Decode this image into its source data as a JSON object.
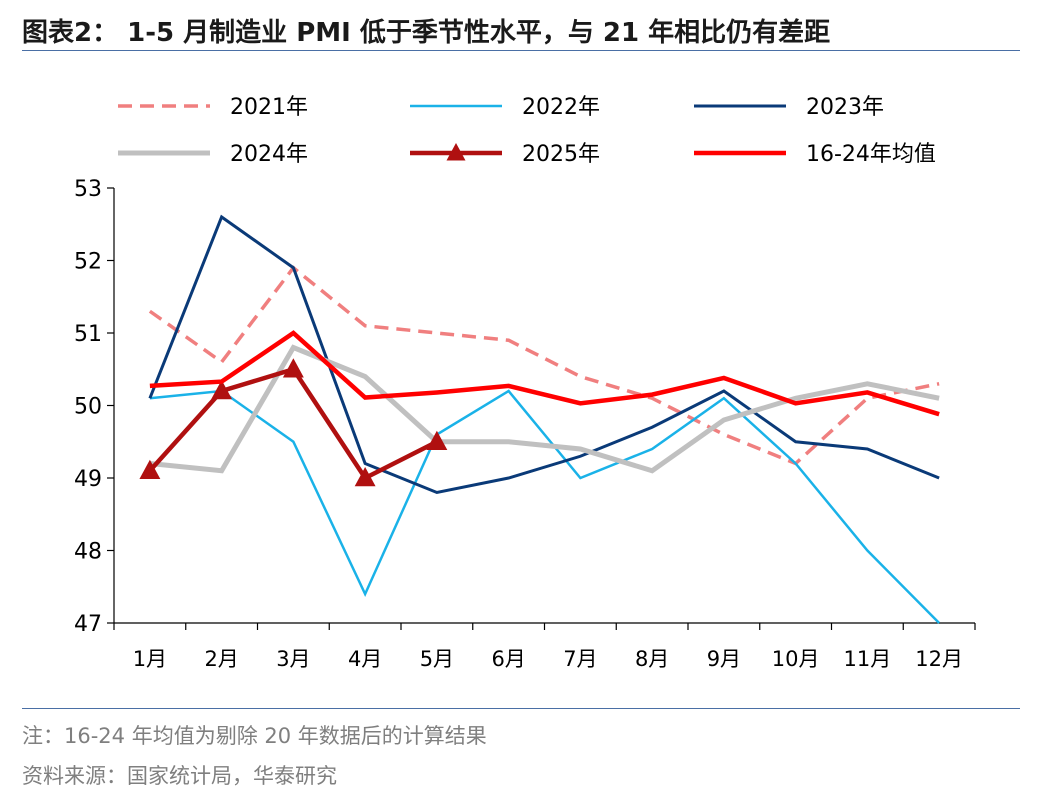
{
  "header": {
    "title": "图表2： 1-5 月制造业 PMI 低于季节性水平，与 21 年相比仍有差距"
  },
  "footer": {
    "note": "注：16-24 年均值为剔除 20 年数据后的计算结果",
    "source": "资料来源：国家统计局，华泰研究"
  },
  "chart_data": {
    "type": "line",
    "categories": [
      "1月",
      "2月",
      "3月",
      "4月",
      "5月",
      "6月",
      "7月",
      "8月",
      "9月",
      "10月",
      "11月",
      "12月"
    ],
    "ylim": [
      47,
      53
    ],
    "yticks": [
      47,
      48,
      49,
      50,
      51,
      52,
      53
    ],
    "grid": false,
    "legend_position": "top",
    "series": [
      {
        "name": "2021年",
        "color": "#f07f7f",
        "style": "dashed",
        "marker": "none",
        "values": [
          51.3,
          50.6,
          51.9,
          51.1,
          51.0,
          50.9,
          50.4,
          50.1,
          49.6,
          49.2,
          50.1,
          50.3
        ]
      },
      {
        "name": "2022年",
        "color": "#1ab2e8",
        "style": "solid",
        "marker": "none",
        "values": [
          50.1,
          50.2,
          49.5,
          47.4,
          49.6,
          50.2,
          49.0,
          49.4,
          50.1,
          49.2,
          48.0,
          47.0
        ]
      },
      {
        "name": "2023年",
        "color": "#0a3a78",
        "style": "solid",
        "marker": "none",
        "values": [
          50.1,
          52.6,
          51.9,
          49.2,
          48.8,
          49.0,
          49.3,
          49.7,
          50.2,
          49.5,
          49.4,
          49.0
        ]
      },
      {
        "name": "2024年",
        "color": "#c0c0c0",
        "style": "solid",
        "marker": "none",
        "values": [
          49.2,
          49.1,
          50.8,
          50.4,
          49.5,
          49.5,
          49.4,
          49.1,
          49.8,
          50.1,
          50.3,
          50.1
        ]
      },
      {
        "name": "2025年",
        "color": "#b01010",
        "style": "solid",
        "marker": "triangle",
        "values": [
          49.1,
          50.2,
          50.5,
          49.0,
          49.5,
          null,
          null,
          null,
          null,
          null,
          null,
          null
        ]
      },
      {
        "name": "16-24年均值",
        "color": "#ff0000",
        "style": "solid",
        "marker": "none",
        "values": [
          50.27,
          50.33,
          51.0,
          50.11,
          50.18,
          50.27,
          50.03,
          50.15,
          50.38,
          50.03,
          50.18,
          49.88
        ]
      }
    ]
  }
}
